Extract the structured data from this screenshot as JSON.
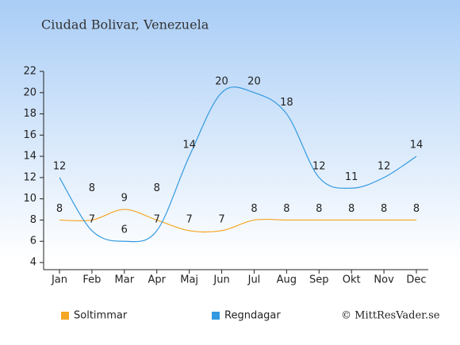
{
  "chart_data": {
    "type": "line",
    "title": "Ciudad Bolivar, Venezuela",
    "categories": [
      "Jan",
      "Feb",
      "Mar",
      "Apr",
      "Maj",
      "Jun",
      "Jul",
      "Aug",
      "Sep",
      "Okt",
      "Nov",
      "Dec"
    ],
    "series": [
      {
        "name": "Soltimmar",
        "color": "#f5a623",
        "values": [
          8,
          8,
          9,
          8,
          7,
          7,
          8,
          8,
          8,
          8,
          8,
          8
        ]
      },
      {
        "name": "Regndagar",
        "color": "#3399e0",
        "values": [
          12,
          7,
          6,
          7,
          14,
          20,
          20,
          18,
          12,
          11,
          12,
          14
        ]
      }
    ],
    "ylim": [
      4,
      22
    ],
    "yticks": [
      4,
      6,
      8,
      10,
      12,
      14,
      16,
      18,
      20,
      22
    ],
    "legend": "bottom",
    "copyright": "© MittResVader.se"
  }
}
